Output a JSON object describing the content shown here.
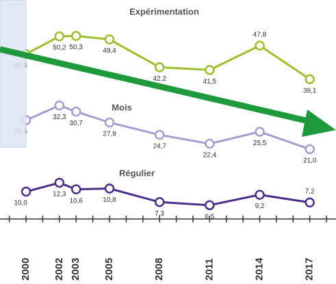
{
  "chart_data": {
    "type": "line",
    "x": [
      2000,
      2002,
      2003,
      2005,
      2008,
      2011,
      2014,
      2017
    ],
    "xlim": [
      1998.44,
      2018.57
    ],
    "xticks": [
      2000,
      2002,
      2003,
      2005,
      2008,
      2011,
      2014,
      2017
    ],
    "xminorticks": [
      1999,
      2001,
      2004,
      2006,
      2007,
      2009,
      2010,
      2012,
      2013,
      2015,
      2016,
      2018
    ],
    "ylim": [
      -13.9,
      59.6
    ],
    "series": [
      {
        "name": "Expérimentation",
        "color": "#9cbf2a",
        "values": [
          45.6,
          50.2,
          50.3,
          49.4,
          42.2,
          41.5,
          47.8,
          39.1
        ],
        "value_labels": [
          "45,6",
          "50,2",
          "50,3",
          "49,4",
          "42,2",
          "41,5",
          "47,8",
          "39,1"
        ]
      },
      {
        "name": "Mois",
        "color": "#a99bd0",
        "values": [
          28.5,
          32.3,
          30.7,
          27.9,
          24.7,
          22.4,
          25.5,
          21.0
        ],
        "value_labels": [
          "28,5",
          "32,3",
          "30,7",
          "27,9",
          "24,7",
          "22,4",
          "25,5",
          "21,0"
        ]
      },
      {
        "name": "Régulier",
        "color": "#4b2d8a",
        "values": [
          10.0,
          12.3,
          10.6,
          10.8,
          7.3,
          6.5,
          9.2,
          7.2
        ],
        "value_labels": [
          "10,0",
          "12,3",
          "10,6",
          "10,8",
          "7,3",
          "6,5",
          "9,2",
          "7,2"
        ]
      }
    ]
  }
}
